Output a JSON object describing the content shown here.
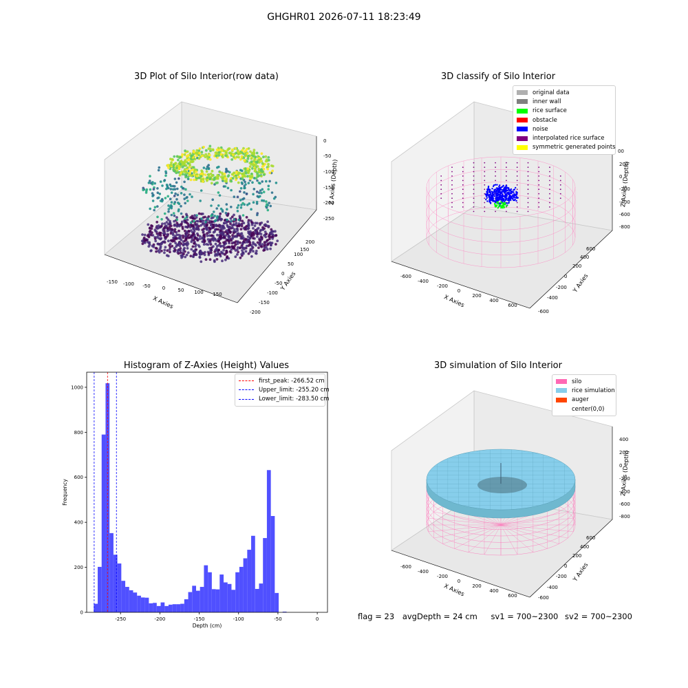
{
  "suptitle": "GHGHR01 2026-07-11 18:23:49",
  "status": {
    "flag": "flag = 23",
    "avg_depth": "avgDepth = 24 cm",
    "sv1": "sv1 = 700~2300",
    "sv2": "sv2 = 700~2300"
  },
  "chart_data": [
    {
      "type": "scatter3d",
      "title": "3D Plot of Silo Interior(row data)",
      "xlabel": "X Axies",
      "ylabel": "Y Axies",
      "zlabel": "Z Axies (Depth)",
      "xticks": [
        "-150",
        "-100",
        "-50",
        "0",
        "50",
        "100",
        "150"
      ],
      "yticks": [
        "-200",
        "-150",
        "-100",
        "-50",
        "0",
        "50",
        "100",
        "150",
        "200"
      ],
      "zticks": [
        "0",
        "-50",
        "-100",
        "-150",
        "-200",
        "-250"
      ],
      "colormap": "viridis"
    },
    {
      "type": "scatter3d",
      "title": "3D classify of Silo Interior",
      "xlabel": "X Axies",
      "ylabel": "Y Axies",
      "zlabel": "Z Axies (Depth)",
      "xticks": [
        "-600",
        "-400",
        "-200",
        "0",
        "200",
        "400",
        "600"
      ],
      "yticks": [
        "-600",
        "-400",
        "-200",
        "0",
        "200",
        "400",
        "600"
      ],
      "zticks": [
        "200",
        "0",
        "-200",
        "-400",
        "-600",
        "-800"
      ],
      "zticks_partial": "00",
      "legend": [
        {
          "label": "original data",
          "color": "#b0b0b0"
        },
        {
          "label": "inner wall",
          "color": "#808080"
        },
        {
          "label": "rice surface",
          "color": "#00ff00"
        },
        {
          "label": "obstacle",
          "color": "#ff0000"
        },
        {
          "label": "noise",
          "color": "#0000ff"
        },
        {
          "label": "interpolated rice surface",
          "color": "#800080"
        },
        {
          "label": "symmetric generated points",
          "color": "#ffff00"
        }
      ]
    },
    {
      "type": "bar",
      "title": "Histogram of Z-Axies (Height) Values",
      "xlabel": "Depth (cm)",
      "ylabel": "Frequency",
      "xlim": [
        -293,
        13
      ],
      "ylim": [
        0,
        1067
      ],
      "xticks": [
        -250,
        -200,
        -150,
        -100,
        -50,
        0
      ],
      "yticks": [
        0,
        200,
        400,
        600,
        800,
        1000
      ],
      "bin_width": 5,
      "bin_start": -284,
      "values": [
        38,
        202,
        790,
        1018,
        352,
        256,
        217,
        140,
        113,
        98,
        88,
        74,
        66,
        65,
        40,
        42,
        28,
        44,
        28,
        34,
        36,
        36,
        38,
        58,
        90,
        118,
        96,
        113,
        209,
        178,
        103,
        102,
        168,
        133,
        126,
        100,
        178,
        202,
        240,
        278,
        340,
        104,
        128,
        330,
        632,
        428,
        86,
        0,
        3
      ],
      "bar_color": "#5050ff",
      "vlines": [
        {
          "label": "first_peak: -266.52 cm",
          "x": -266.52,
          "color": "#ff0000"
        },
        {
          "label": "Upper_limit: -255.20 cm",
          "x": -255.2,
          "color": "#0000ff"
        },
        {
          "label": "Lower_limit: -283.50 cm",
          "x": -283.5,
          "color": "#0000ff"
        }
      ]
    },
    {
      "type": "surface3d",
      "title": "3D simulation of Silo Interior",
      "xlabel": "X Axies",
      "ylabel": "Y Axies",
      "zlabel": "Z Axies (Depth)",
      "xticks": [
        "-600",
        "-400",
        "-200",
        "0",
        "200",
        "400",
        "600"
      ],
      "yticks": [
        "-600",
        "-400",
        "-200",
        "0",
        "200",
        "400",
        "600"
      ],
      "zticks": [
        "400",
        "200",
        "0",
        "-200",
        "-400",
        "-600",
        "-800"
      ],
      "legend": [
        {
          "label": "silo",
          "color": "#ff69b4"
        },
        {
          "label": "rice simulation",
          "color": "#87ceeb"
        },
        {
          "label": "auger",
          "color": "#ff4500"
        },
        {
          "label": "center(0,0)",
          "color": ""
        }
      ]
    }
  ]
}
